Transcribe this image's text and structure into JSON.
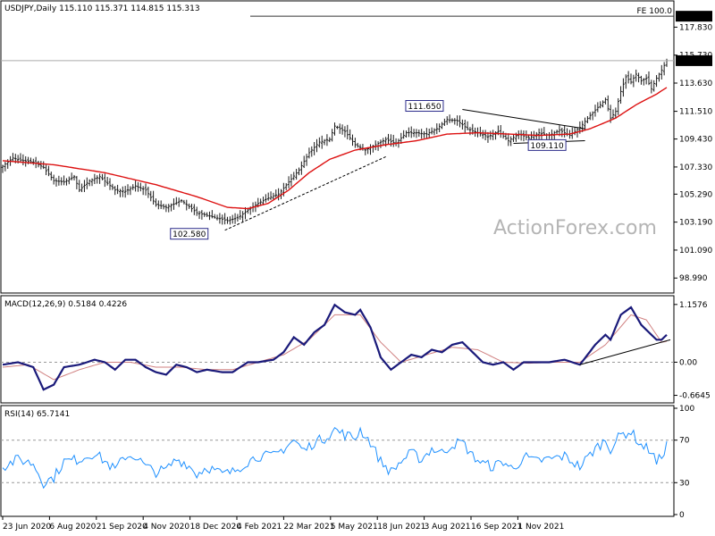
{
  "chart_data": [
    {
      "type": "candlestick",
      "panel": "price",
      "title": "USDJPY,Daily  115.110 115.371 114.815 115.313",
      "ylim": [
        98.0,
        119.6
      ],
      "yticks": [
        "117.830",
        "115.730",
        "113.630",
        "111.510",
        "109.430",
        "107.330",
        "105.290",
        "103.190",
        "101.090",
        "98.990"
      ],
      "ytick_values": [
        117.83,
        115.73,
        113.63,
        111.51,
        109.43,
        107.33,
        105.29,
        103.19,
        101.09,
        98.99
      ],
      "xtick_labels": [
        "23 Jun 2020",
        "6 Aug 2020",
        "21 Sep 2020",
        "4 Nov 2020",
        "18 Dec 2020",
        "4 Feb 2021",
        "22 Mar 2021",
        "5 May 2021",
        "18 Jun 2021",
        "3 Aug 2021",
        "16 Sep 2021",
        "1 Nov 2021"
      ],
      "close_path": [
        [
          0,
          107.4
        ],
        [
          4,
          108.0
        ],
        [
          8,
          107.8
        ],
        [
          12,
          107.7
        ],
        [
          16,
          107.3
        ],
        [
          20,
          106.3
        ],
        [
          24,
          106.2
        ],
        [
          28,
          106.6
        ],
        [
          30,
          105.6
        ],
        [
          34,
          106.3
        ],
        [
          38,
          106.6
        ],
        [
          44,
          105.6
        ],
        [
          48,
          105.5
        ],
        [
          52,
          105.9
        ],
        [
          56,
          105.6
        ],
        [
          60,
          104.5
        ],
        [
          64,
          104.3
        ],
        [
          70,
          104.8
        ],
        [
          76,
          103.9
        ],
        [
          82,
          103.6
        ],
        [
          88,
          103.3
        ],
        [
          92,
          103.5
        ],
        [
          96,
          104.1
        ],
        [
          100,
          104.6
        ],
        [
          104,
          105.0
        ],
        [
          108,
          105.3
        ],
        [
          112,
          106.2
        ],
        [
          116,
          107.1
        ],
        [
          120,
          108.4
        ],
        [
          124,
          109.2
        ],
        [
          128,
          109.4
        ],
        [
          130,
          110.4
        ],
        [
          134,
          110.0
        ],
        [
          138,
          109.0
        ],
        [
          142,
          108.6
        ],
        [
          146,
          109.0
        ],
        [
          150,
          109.4
        ],
        [
          154,
          109.1
        ],
        [
          158,
          109.9
        ],
        [
          162,
          109.9
        ],
        [
          166,
          109.8
        ],
        [
          170,
          110.2
        ],
        [
          174,
          110.9
        ],
        [
          178,
          110.8
        ],
        [
          182,
          110.2
        ],
        [
          186,
          109.9
        ],
        [
          190,
          109.6
        ],
        [
          194,
          110.0
        ],
        [
          198,
          109.3
        ],
        [
          202,
          109.8
        ],
        [
          206,
          109.5
        ],
        [
          210,
          109.9
        ],
        [
          214,
          109.7
        ],
        [
          218,
          110.1
        ],
        [
          222,
          109.7
        ],
        [
          226,
          110.3
        ],
        [
          230,
          111.2
        ],
        [
          234,
          112.0
        ],
        [
          236,
          112.4
        ],
        [
          238,
          111.0
        ],
        [
          240,
          111.5
        ],
        [
          242,
          113.0
        ],
        [
          244,
          114.1
        ],
        [
          246,
          113.7
        ],
        [
          248,
          114.3
        ],
        [
          250,
          113.8
        ],
        [
          252,
          114.0
        ],
        [
          254,
          113.2
        ],
        [
          256,
          114.0
        ],
        [
          258,
          114.6
        ],
        [
          260,
          115.313
        ]
      ],
      "ma_path": [
        [
          0,
          107.8
        ],
        [
          20,
          107.5
        ],
        [
          40,
          106.9
        ],
        [
          60,
          106.0
        ],
        [
          76,
          105.1
        ],
        [
          88,
          104.3
        ],
        [
          96,
          104.2
        ],
        [
          104,
          104.6
        ],
        [
          112,
          105.6
        ],
        [
          120,
          106.9
        ],
        [
          128,
          107.9
        ],
        [
          138,
          108.6
        ],
        [
          150,
          109.0
        ],
        [
          162,
          109.3
        ],
        [
          174,
          109.8
        ],
        [
          186,
          109.9
        ],
        [
          198,
          109.8
        ],
        [
          210,
          109.7
        ],
        [
          222,
          109.8
        ],
        [
          230,
          110.2
        ],
        [
          240,
          111.0
        ],
        [
          248,
          112.0
        ],
        [
          256,
          112.8
        ],
        [
          260,
          113.3
        ]
      ],
      "last_price": "115.313",
      "fe_level": "118.650",
      "fe_label": "FE 100.0",
      "annotations": [
        {
          "text": "102.580",
          "x": 86,
          "y": 102.58
        },
        {
          "text": "111.650",
          "x": 176,
          "y": 111.65
        },
        {
          "text": "109.110",
          "x": 210,
          "y": 109.11
        }
      ],
      "trendlines": [
        {
          "from": [
            87,
            102.58
          ],
          "to": [
            150,
            108.1
          ],
          "style": "dashed"
        },
        {
          "from": [
            180,
            111.65
          ],
          "to": [
            228,
            110.2
          ],
          "style": "solid"
        },
        {
          "from": [
            200,
            109.1
          ],
          "to": [
            228,
            109.3
          ],
          "style": "solid"
        }
      ],
      "watermark": "ActionForex.com"
    },
    {
      "type": "line",
      "panel": "macd",
      "title": "MACD(12,26,9) 0.5184 0.4226",
      "ylim": [
        -0.78,
        1.28
      ],
      "yticks": [
        "1.1576",
        "0.00",
        "-0.6645"
      ],
      "ytick_values": [
        1.1576,
        0.0,
        -0.6645
      ],
      "macd_path": [
        [
          0,
          -0.05
        ],
        [
          6,
          0.0
        ],
        [
          12,
          -0.1
        ],
        [
          16,
          -0.55
        ],
        [
          20,
          -0.45
        ],
        [
          24,
          -0.1
        ],
        [
          30,
          -0.05
        ],
        [
          36,
          0.05
        ],
        [
          40,
          0.0
        ],
        [
          44,
          -0.15
        ],
        [
          48,
          0.05
        ],
        [
          52,
          0.05
        ],
        [
          56,
          -0.1
        ],
        [
          60,
          -0.2
        ],
        [
          64,
          -0.25
        ],
        [
          68,
          -0.05
        ],
        [
          72,
          -0.1
        ],
        [
          76,
          -0.2
        ],
        [
          80,
          -0.15
        ],
        [
          86,
          -0.2
        ],
        [
          90,
          -0.2
        ],
        [
          96,
          0.0
        ],
        [
          100,
          0.0
        ],
        [
          106,
          0.05
        ],
        [
          110,
          0.2
        ],
        [
          114,
          0.5
        ],
        [
          118,
          0.35
        ],
        [
          122,
          0.6
        ],
        [
          126,
          0.75
        ],
        [
          130,
          1.15
        ],
        [
          134,
          1.0
        ],
        [
          138,
          0.95
        ],
        [
          140,
          1.05
        ],
        [
          144,
          0.7
        ],
        [
          148,
          0.1
        ],
        [
          152,
          -0.15
        ],
        [
          156,
          0.0
        ],
        [
          160,
          0.15
        ],
        [
          164,
          0.1
        ],
        [
          168,
          0.25
        ],
        [
          172,
          0.2
        ],
        [
          176,
          0.35
        ],
        [
          180,
          0.4
        ],
        [
          184,
          0.2
        ],
        [
          188,
          0.0
        ],
        [
          192,
          -0.05
        ],
        [
          196,
          0.0
        ],
        [
          200,
          -0.15
        ],
        [
          204,
          0.0
        ],
        [
          208,
          0.0
        ],
        [
          214,
          0.0
        ],
        [
          220,
          0.05
        ],
        [
          226,
          -0.05
        ],
        [
          232,
          0.35
        ],
        [
          236,
          0.55
        ],
        [
          238,
          0.45
        ],
        [
          242,
          0.95
        ],
        [
          246,
          1.1
        ],
        [
          250,
          0.75
        ],
        [
          254,
          0.55
        ],
        [
          256,
          0.45
        ],
        [
          258,
          0.45
        ],
        [
          260,
          0.55
        ]
      ],
      "signal_path": [
        [
          0,
          -0.1
        ],
        [
          10,
          -0.05
        ],
        [
          20,
          -0.35
        ],
        [
          30,
          -0.15
        ],
        [
          40,
          0.0
        ],
        [
          50,
          0.0
        ],
        [
          60,
          -0.1
        ],
        [
          70,
          -0.1
        ],
        [
          80,
          -0.15
        ],
        [
          90,
          -0.15
        ],
        [
          100,
          0.0
        ],
        [
          110,
          0.15
        ],
        [
          120,
          0.45
        ],
        [
          130,
          0.95
        ],
        [
          140,
          0.95
        ],
        [
          148,
          0.4
        ],
        [
          156,
          0.0
        ],
        [
          166,
          0.15
        ],
        [
          176,
          0.3
        ],
        [
          186,
          0.25
        ],
        [
          196,
          0.0
        ],
        [
          206,
          -0.02
        ],
        [
          216,
          0.0
        ],
        [
          226,
          0.0
        ],
        [
          236,
          0.35
        ],
        [
          246,
          0.95
        ],
        [
          252,
          0.85
        ],
        [
          258,
          0.4
        ],
        [
          260,
          0.42
        ]
      ],
      "trendline": {
        "from": [
          226,
          -0.05
        ],
        "to": [
          260,
          0.45
        ]
      }
    },
    {
      "type": "line",
      "panel": "rsi",
      "title": "RSI(14) 65.7141",
      "ylim": [
        0,
        100
      ],
      "yticks": [
        "100",
        "70",
        "30",
        "0"
      ],
      "ytick_values": [
        100,
        70,
        30,
        0
      ],
      "levels": [
        70,
        30
      ],
      "rsi_path": [
        [
          0,
          45
        ],
        [
          6,
          52
        ],
        [
          12,
          48
        ],
        [
          16,
          30
        ],
        [
          20,
          35
        ],
        [
          24,
          50
        ],
        [
          30,
          52
        ],
        [
          36,
          58
        ],
        [
          40,
          50
        ],
        [
          44,
          42
        ],
        [
          48,
          55
        ],
        [
          52,
          55
        ],
        [
          56,
          45
        ],
        [
          60,
          40
        ],
        [
          64,
          42
        ],
        [
          68,
          52
        ],
        [
          72,
          48
        ],
        [
          76,
          38
        ],
        [
          80,
          45
        ],
        [
          86,
          38
        ],
        [
          90,
          40
        ],
        [
          96,
          50
        ],
        [
          100,
          55
        ],
        [
          106,
          55
        ],
        [
          110,
          62
        ],
        [
          114,
          70
        ],
        [
          118,
          60
        ],
        [
          122,
          68
        ],
        [
          126,
          72
        ],
        [
          130,
          80
        ],
        [
          134,
          75
        ],
        [
          138,
          72
        ],
        [
          140,
          80
        ],
        [
          144,
          68
        ],
        [
          148,
          50
        ],
        [
          152,
          40
        ],
        [
          156,
          50
        ],
        [
          160,
          58
        ],
        [
          164,
          52
        ],
        [
          168,
          62
        ],
        [
          172,
          58
        ],
        [
          176,
          66
        ],
        [
          180,
          68
        ],
        [
          184,
          55
        ],
        [
          188,
          48
        ],
        [
          192,
          45
        ],
        [
          196,
          50
        ],
        [
          200,
          42
        ],
        [
          204,
          55
        ],
        [
          208,
          50
        ],
        [
          214,
          52
        ],
        [
          220,
          55
        ],
        [
          226,
          45
        ],
        [
          232,
          62
        ],
        [
          236,
          70
        ],
        [
          238,
          62
        ],
        [
          242,
          75
        ],
        [
          246,
          78
        ],
        [
          250,
          65
        ],
        [
          254,
          60
        ],
        [
          256,
          48
        ],
        [
          258,
          55
        ],
        [
          260,
          65.7141
        ]
      ]
    }
  ]
}
